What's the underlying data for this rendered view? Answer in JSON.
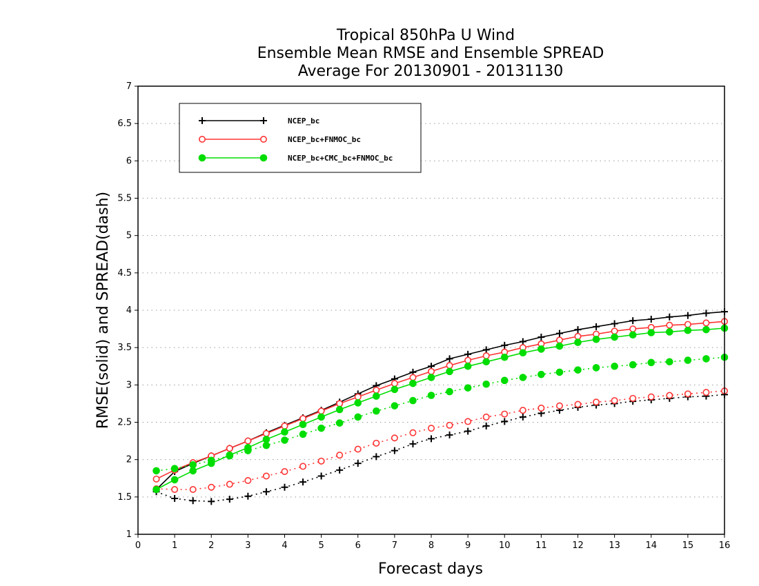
{
  "chart_data": {
    "type": "line",
    "title_lines": [
      "Tropical 850hPa U Wind",
      "Ensemble Mean RMSE and Ensemble SPREAD",
      "Average For 20130901 - 20131130"
    ],
    "xlabel": "Forecast days",
    "ylabel": "RMSE(solid) and SPREAD(dash)",
    "xlim": [
      0,
      16
    ],
    "ylim": [
      1,
      7
    ],
    "xticks": [
      "0",
      "1",
      "2",
      "3",
      "4",
      "5",
      "6",
      "7",
      "8",
      "9",
      "10",
      "11",
      "12",
      "13",
      "14",
      "15",
      "16"
    ],
    "yticks": [
      "1",
      "1.5",
      "2",
      "2.5",
      "3",
      "3.5",
      "4",
      "4.5",
      "5",
      "5.5",
      "6",
      "6.5",
      "7"
    ],
    "grid": "horizontal-dotted",
    "legend_position": "top-left",
    "x": [
      0.5,
      1,
      1.5,
      2,
      2.5,
      3,
      3.5,
      4,
      4.5,
      5,
      5.5,
      6,
      6.5,
      7,
      7.5,
      8,
      8.5,
      9,
      9.5,
      10,
      10.5,
      11,
      11.5,
      12,
      12.5,
      13,
      13.5,
      14,
      14.5,
      15,
      15.5,
      16
    ],
    "series": [
      {
        "name": "NCEP_bc",
        "color": "#000000",
        "marker": "plus",
        "rmse": [
          1.6,
          1.84,
          1.95,
          2.05,
          2.15,
          2.25,
          2.36,
          2.46,
          2.56,
          2.66,
          2.77,
          2.88,
          2.99,
          3.08,
          3.17,
          3.25,
          3.35,
          3.41,
          3.47,
          3.53,
          3.58,
          3.64,
          3.69,
          3.74,
          3.78,
          3.82,
          3.86,
          3.88,
          3.91,
          3.93,
          3.96,
          3.98
        ],
        "spread": [
          1.57,
          1.48,
          1.45,
          1.44,
          1.47,
          1.51,
          1.57,
          1.63,
          1.7,
          1.78,
          1.86,
          1.95,
          2.04,
          2.12,
          2.21,
          2.28,
          2.33,
          2.38,
          2.45,
          2.51,
          2.57,
          2.62,
          2.66,
          2.7,
          2.73,
          2.75,
          2.78,
          2.8,
          2.82,
          2.84,
          2.85,
          2.87
        ]
      },
      {
        "name": "NCEP_bc+FNMOC_bc",
        "color": "#ff3333",
        "marker": "open-circle",
        "rmse": [
          1.74,
          1.86,
          1.96,
          2.05,
          2.15,
          2.25,
          2.35,
          2.45,
          2.55,
          2.65,
          2.75,
          2.84,
          2.93,
          3.02,
          3.1,
          3.18,
          3.26,
          3.33,
          3.39,
          3.44,
          3.5,
          3.55,
          3.6,
          3.65,
          3.68,
          3.72,
          3.75,
          3.77,
          3.8,
          3.81,
          3.83,
          3.85
        ],
        "spread": [
          1.61,
          1.6,
          1.6,
          1.63,
          1.67,
          1.72,
          1.78,
          1.84,
          1.91,
          1.98,
          2.06,
          2.14,
          2.22,
          2.29,
          2.36,
          2.42,
          2.46,
          2.51,
          2.57,
          2.61,
          2.66,
          2.69,
          2.72,
          2.74,
          2.77,
          2.79,
          2.82,
          2.84,
          2.86,
          2.88,
          2.9,
          2.92
        ]
      },
      {
        "name": "NCEP_bc+CMC_bc+FNMOC_bc",
        "color": "#00dd00",
        "marker": "filled-circle",
        "rmse": [
          1.6,
          1.73,
          1.85,
          1.95,
          2.06,
          2.16,
          2.27,
          2.37,
          2.47,
          2.57,
          2.67,
          2.76,
          2.85,
          2.94,
          3.02,
          3.1,
          3.18,
          3.25,
          3.31,
          3.37,
          3.43,
          3.48,
          3.52,
          3.57,
          3.61,
          3.64,
          3.67,
          3.7,
          3.71,
          3.73,
          3.74,
          3.76
        ],
        "spread": [
          1.85,
          1.88,
          1.93,
          1.99,
          2.05,
          2.12,
          2.19,
          2.26,
          2.34,
          2.42,
          2.49,
          2.57,
          2.65,
          2.72,
          2.79,
          2.86,
          2.91,
          2.96,
          3.01,
          3.06,
          3.1,
          3.14,
          3.17,
          3.2,
          3.23,
          3.25,
          3.27,
          3.3,
          3.31,
          3.33,
          3.35,
          3.37
        ]
      }
    ]
  }
}
